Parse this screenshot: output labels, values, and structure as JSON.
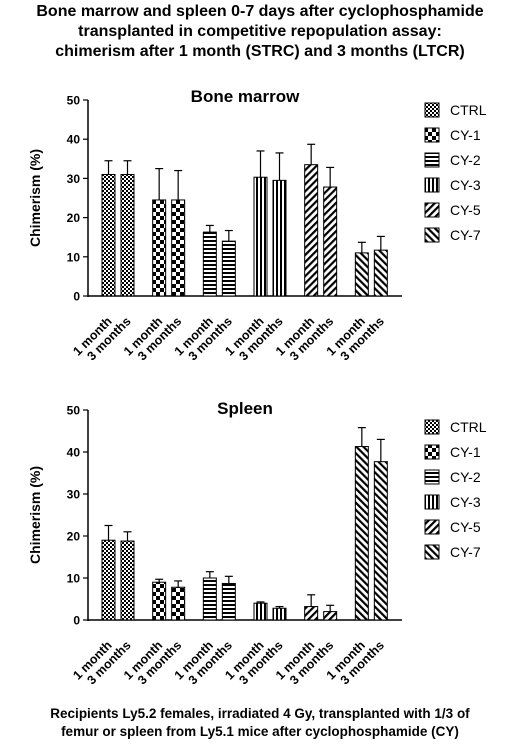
{
  "header": {
    "lines": [
      "Bone marrow and spleen 0-7 days after cyclophosphamide",
      "transplanted in competitive repopulation assay:",
      "chimerism after 1 month (STRC) and 3 months (LTCR)"
    ]
  },
  "footer": {
    "lines": [
      "Recipients Ly5.2 females, irradiated 4 Gy, transplanted with 1/3 of",
      "femur or spleen from Ly5.1 mice after cyclophosphamide (CY)"
    ]
  },
  "chart_data": [
    {
      "type": "bar",
      "title": "Bone marrow",
      "ylabel": "Chimerism (%)",
      "xlabel": "",
      "ylim": [
        0,
        50
      ],
      "yticks": [
        0,
        10,
        20,
        30,
        40,
        50
      ],
      "categories": [
        "1 month",
        "3 months"
      ],
      "legend_position": "right",
      "series": [
        {
          "name": "CTRL",
          "pattern": "checker",
          "values": [
            31,
            31
          ],
          "errors": [
            3.5,
            3.5
          ]
        },
        {
          "name": "CY-1",
          "pattern": "checker-large",
          "values": [
            24.5,
            24.5
          ],
          "errors": [
            8,
            7.5
          ]
        },
        {
          "name": "CY-2",
          "pattern": "horizontal",
          "values": [
            16.3,
            14
          ],
          "errors": [
            1.7,
            2.7
          ]
        },
        {
          "name": "CY-3",
          "pattern": "vertical",
          "values": [
            30.3,
            29.5
          ],
          "errors": [
            6.7,
            7
          ]
        },
        {
          "name": "CY-5",
          "pattern": "diagonal-up",
          "values": [
            33.5,
            27.8
          ],
          "errors": [
            5.2,
            5
          ]
        },
        {
          "name": "CY-7",
          "pattern": "diagonal-down",
          "values": [
            11,
            11.7
          ],
          "errors": [
            2.7,
            3.5
          ]
        }
      ]
    },
    {
      "type": "bar",
      "title": "Spleen",
      "ylabel": "Chimerism (%)",
      "xlabel": "",
      "ylim": [
        0,
        50
      ],
      "yticks": [
        0,
        10,
        20,
        30,
        40,
        50
      ],
      "categories": [
        "1 month",
        "3 months"
      ],
      "legend_position": "right",
      "series": [
        {
          "name": "CTRL",
          "pattern": "checker",
          "values": [
            19,
            18.8
          ],
          "errors": [
            3.5,
            2.2
          ]
        },
        {
          "name": "CY-1",
          "pattern": "checker-large",
          "values": [
            9,
            7.8
          ],
          "errors": [
            0.7,
            1.5
          ]
        },
        {
          "name": "CY-2",
          "pattern": "horizontal",
          "values": [
            10,
            8.7
          ],
          "errors": [
            1.5,
            1.7
          ]
        },
        {
          "name": "CY-3",
          "pattern": "vertical",
          "values": [
            4,
            2.8
          ],
          "errors": [
            0.3,
            0.4
          ]
        },
        {
          "name": "CY-5",
          "pattern": "diagonal-up",
          "values": [
            3.2,
            2
          ],
          "errors": [
            2.8,
            1.5
          ]
        },
        {
          "name": "CY-7",
          "pattern": "diagonal-down",
          "values": [
            41.3,
            37.7
          ],
          "errors": [
            4.5,
            5.3
          ]
        }
      ]
    }
  ]
}
